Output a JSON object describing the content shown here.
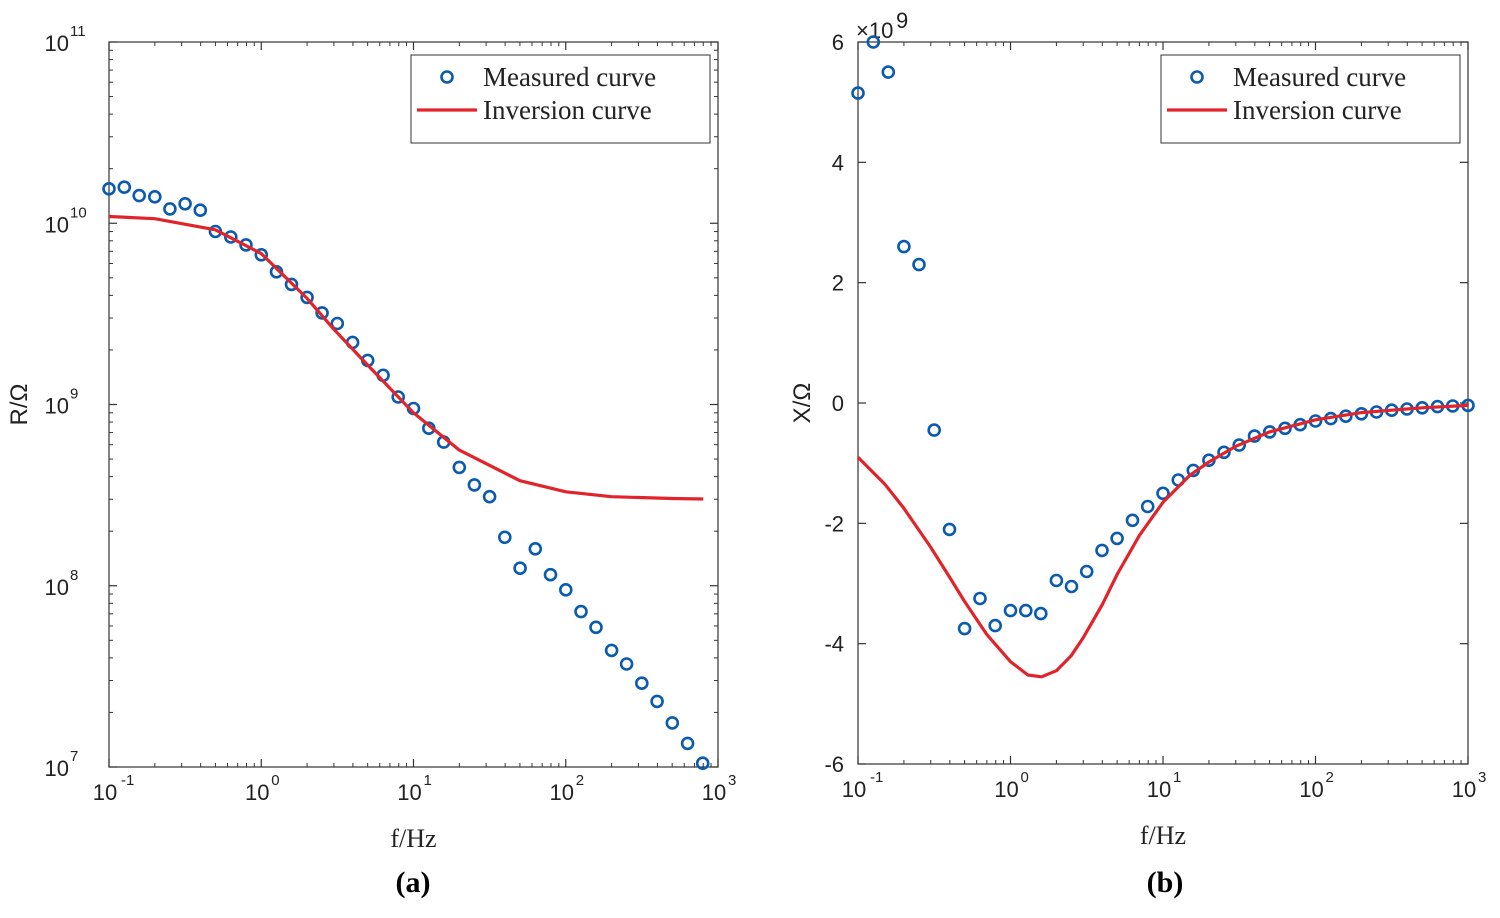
{
  "chart_data": [
    {
      "type": "scatter",
      "panel_label": "(a)",
      "xlabel": "f/Hz",
      "ylabel": "R/Ω",
      "xscale": "log",
      "yscale": "log",
      "xlim": [
        0.1,
        1000
      ],
      "ylim": [
        10000000,
        100000000000
      ],
      "xticks": [
        {
          "base": "10",
          "exp": "-1"
        },
        {
          "base": "10",
          "exp": "0"
        },
        {
          "base": "10",
          "exp": "1"
        },
        {
          "base": "10",
          "exp": "2"
        },
        {
          "base": "10",
          "exp": "3"
        }
      ],
      "yticks": [
        {
          "base": "10",
          "exp": "7"
        },
        {
          "base": "10",
          "exp": "8"
        },
        {
          "base": "10",
          "exp": "9"
        },
        {
          "base": "10",
          "exp": "10"
        },
        {
          "base": "10",
          "exp": "11"
        }
      ],
      "legend_position": "top-right",
      "grid": false,
      "series": [
        {
          "name": "Measured curve",
          "marker": "circle",
          "color": "#0a5bb0",
          "x": [
            0.1,
            0.126,
            0.158,
            0.2,
            0.251,
            0.316,
            0.398,
            0.5,
            0.631,
            0.794,
            1.0,
            1.26,
            1.58,
            2.0,
            2.51,
            3.16,
            3.98,
            5.0,
            6.31,
            7.94,
            10.0,
            12.6,
            15.8,
            20.0,
            25.1,
            31.6,
            39.8,
            50.1,
            63.1,
            79.4,
            100,
            126,
            158,
            200,
            251,
            316,
            398,
            501,
            631,
            794
          ],
          "y": [
            15500000000,
            15800000000,
            14200000000,
            14000000000,
            12000000000,
            12800000000,
            11800000000,
            9000000000,
            8400000000,
            7600000000,
            6700000000,
            5400000000,
            4600000000,
            3900000000,
            3200000000,
            2800000000,
            2200000000,
            1750000000,
            1450000000,
            1100000000,
            950000000,
            740000000,
            620000000,
            450000000,
            360000000,
            310000000,
            185000000,
            125000000,
            160000000,
            115000000,
            95000000,
            72000000,
            59000000,
            44000000,
            37000000,
            29000000,
            23000000,
            17500000,
            13500000,
            10500000
          ]
        },
        {
          "name": "Inversion curve",
          "line": "solid",
          "color": "#e0242a",
          "x": [
            0.1,
            0.2,
            0.5,
            1,
            2,
            3,
            5,
            10,
            20,
            50,
            100,
            200,
            500,
            800
          ],
          "y": [
            10900000000,
            10600000000,
            9200000000,
            6800000000,
            3850000000,
            2600000000,
            1650000000,
            900000000,
            560000000,
            380000000,
            330000000,
            310000000,
            303000000,
            301000000
          ]
        }
      ]
    },
    {
      "type": "scatter",
      "panel_label": "(b)",
      "xlabel": "f/Hz",
      "ylabel": "X/Ω",
      "xscale": "log",
      "yscale": "linear",
      "y_multiplier": {
        "base": "×10",
        "exp": "9"
      },
      "xlim": [
        0.1,
        1000
      ],
      "ylim": [
        -6,
        6
      ],
      "xticks": [
        {
          "base": "10",
          "exp": "-1"
        },
        {
          "base": "10",
          "exp": "0"
        },
        {
          "base": "10",
          "exp": "1"
        },
        {
          "base": "10",
          "exp": "2"
        },
        {
          "base": "10",
          "exp": "3"
        }
      ],
      "yticks": [
        "6",
        "4",
        "2",
        "0",
        "-2",
        "-4",
        "-6"
      ],
      "legend_position": "top-right",
      "grid": false,
      "series": [
        {
          "name": "Measured curve",
          "marker": "circle",
          "color": "#0a5bb0",
          "x": [
            0.1,
            0.126,
            0.158,
            0.2,
            0.251,
            0.316,
            0.398,
            0.5,
            0.631,
            0.794,
            1.0,
            1.26,
            1.58,
            2.0,
            2.51,
            3.16,
            3.98,
            5.0,
            6.31,
            7.94,
            10.0,
            12.6,
            15.8,
            20.0,
            25.1,
            31.6,
            39.8,
            50.1,
            63.1,
            79.4,
            100,
            126,
            158,
            200,
            251,
            316,
            398,
            501,
            631,
            794,
            1000
          ],
          "y": [
            5.15,
            6.0,
            5.5,
            2.6,
            2.3,
            -0.45,
            -2.1,
            -3.75,
            -3.25,
            -3.7,
            -3.45,
            -3.45,
            -3.5,
            -2.95,
            -3.05,
            -2.8,
            -2.45,
            -2.25,
            -1.95,
            -1.72,
            -1.5,
            -1.28,
            -1.12,
            -0.95,
            -0.82,
            -0.7,
            -0.55,
            -0.48,
            -0.42,
            -0.36,
            -0.3,
            -0.26,
            -0.22,
            -0.18,
            -0.15,
            -0.12,
            -0.1,
            -0.08,
            -0.06,
            -0.05,
            -0.04
          ]
        },
        {
          "name": "Inversion curve",
          "line": "solid",
          "color": "#e0242a",
          "x": [
            0.1,
            0.15,
            0.2,
            0.3,
            0.4,
            0.5,
            0.7,
            1.0,
            1.3,
            1.6,
            2.0,
            2.5,
            3.0,
            4.0,
            5.0,
            7.0,
            10,
            15,
            20,
            30,
            50,
            100,
            200,
            500,
            1000
          ],
          "y": [
            -0.9,
            -1.35,
            -1.75,
            -2.4,
            -2.9,
            -3.3,
            -3.85,
            -4.3,
            -4.52,
            -4.55,
            -4.45,
            -4.2,
            -3.9,
            -3.35,
            -2.85,
            -2.2,
            -1.65,
            -1.2,
            -0.98,
            -0.72,
            -0.48,
            -0.28,
            -0.16,
            -0.08,
            -0.04
          ]
        }
      ]
    }
  ]
}
